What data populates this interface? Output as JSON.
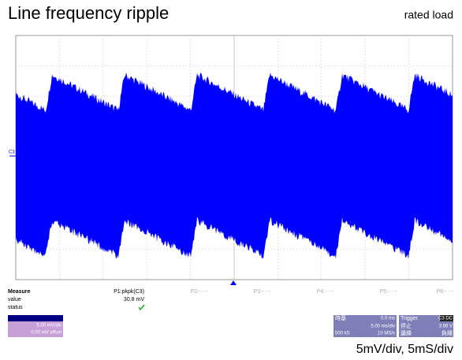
{
  "header": {
    "title": "Line frequency ripple",
    "subtitle": "rated load"
  },
  "channel": {
    "label": "C3",
    "scale": "5.00 mV/div",
    "offset": "0.00 mV offset"
  },
  "measure": {
    "title": "Measure",
    "row_labels": [
      "value",
      "status"
    ],
    "params": [
      "P1:pkpk(C3)",
      "P2:- - -",
      "P3:- - -",
      "P4:- - -",
      "P5:- - -",
      "P6:- - -"
    ],
    "value": "30.8 mV"
  },
  "timebase": {
    "label": "時基",
    "delay": "0.0 ms",
    "scale": "5.00 ms/div",
    "samples": "500 kS",
    "rate": "10 MS/s"
  },
  "trigger": {
    "label": "Trigger",
    "source": "C3 DC",
    "mode": "停止",
    "level": "3.56 V",
    "type": "邊緣",
    "slope": "負緣"
  },
  "footer": "5mV/div, 5mS/div"
}
